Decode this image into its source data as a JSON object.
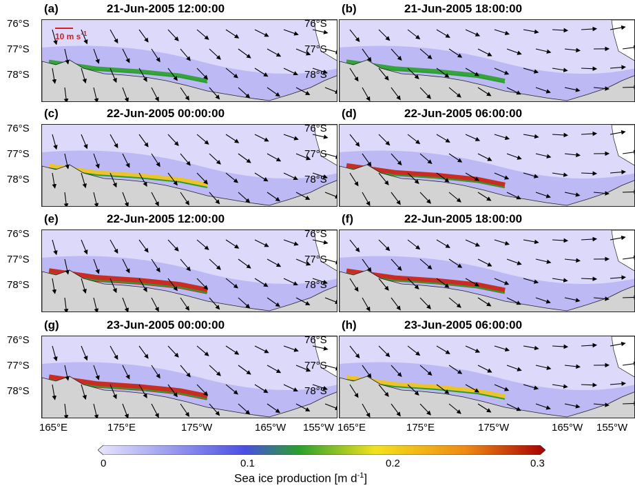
{
  "panels": [
    {
      "label": "(a)",
      "title": "21-Jun-2005 12:00:00"
    },
    {
      "label": "(b)",
      "title": "21-Jun-2005 18:00:00"
    },
    {
      "label": "(c)",
      "title": "22-Jun-2005 00:00:00"
    },
    {
      "label": "(d)",
      "title": "22-Jun-2005 06:00:00"
    },
    {
      "label": "(e)",
      "title": "22-Jun-2005 12:00:00"
    },
    {
      "label": "(f)",
      "title": "22-Jun-2005 18:00:00"
    },
    {
      "label": "(g)",
      "title": "23-Jun-2005 00:00:00"
    },
    {
      "label": "(h)",
      "title": "23-Jun-2005 06:00:00"
    }
  ],
  "lat_labels": [
    "76°S",
    "77°S",
    "78°S"
  ],
  "lon_labels": [
    "165°E",
    "175°E",
    "175°W",
    "165°W",
    "155°W"
  ],
  "scale_arrow": {
    "text": "10 m s",
    "sup": "-1",
    "color": "#d41d1d"
  },
  "colorbar": {
    "ticks": [
      "0",
      "0.1",
      "0.2",
      "0.3"
    ],
    "title_main": "Sea ice production [m d",
    "title_sup": "-1",
    "title_end": "]",
    "colors": [
      "#e8e6fb",
      "#5a5de6",
      "#2aa02c",
      "#f2e21e",
      "#f08a14",
      "#b00000"
    ]
  }
}
